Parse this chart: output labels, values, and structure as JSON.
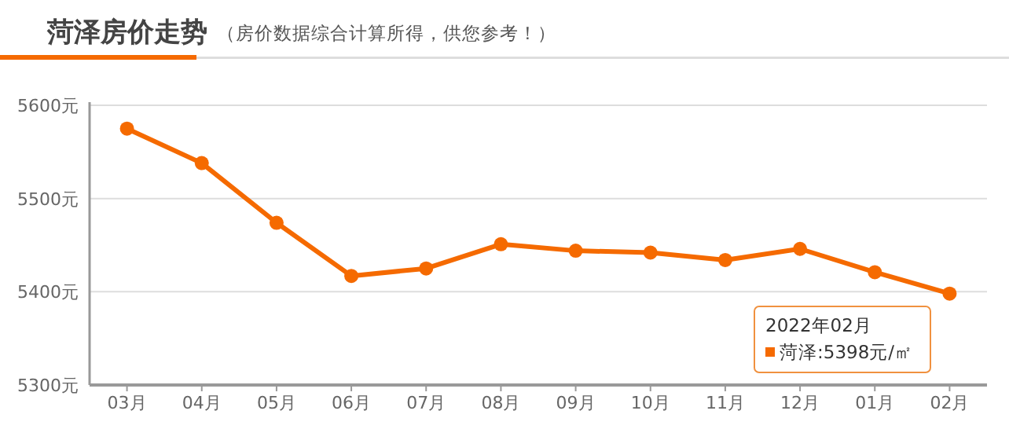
{
  "chart_data": {
    "type": "line",
    "title": "菏泽房价走势",
    "subtitle": "（房价数据综合计算所得，供您参考！）",
    "categories": [
      "03月",
      "04月",
      "05月",
      "06月",
      "07月",
      "08月",
      "09月",
      "10月",
      "11月",
      "12月",
      "01月",
      "02月"
    ],
    "series": [
      {
        "color": "#f56a00",
        "values": [
          5575,
          5538,
          5474,
          5417,
          5425,
          5451,
          5444,
          5442,
          5434,
          5446,
          5421,
          5398
        ]
      }
    ],
    "ylim": [
      5300,
      5600
    ],
    "yticks": [
      {
        "value": 5300,
        "label": "5300元"
      },
      {
        "value": 5400,
        "label": "5400元"
      },
      {
        "value": 5500,
        "label": "5500元"
      },
      {
        "value": 5600,
        "label": "5600元"
      }
    ],
    "annotations": [
      "2022年02月",
      "菏泽:5398元/㎡"
    ],
    "grid": "y",
    "marker": "circle",
    "line_style": "solid"
  }
}
